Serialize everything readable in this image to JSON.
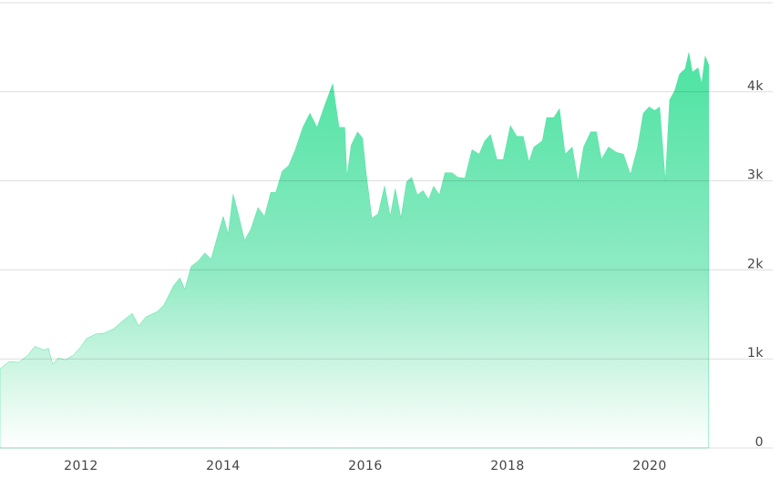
{
  "chart_data": {
    "type": "area",
    "color": "#4be3a1",
    "grid": true,
    "x": [
      2010.86,
      2010.99,
      2011.12,
      2011.25,
      2011.35,
      2011.48,
      2011.54,
      2011.6,
      2011.68,
      2011.78,
      2011.89,
      2011.99,
      2012.08,
      2012.21,
      2012.33,
      2012.46,
      2012.59,
      2012.72,
      2012.81,
      2012.91,
      2013.07,
      2013.17,
      2013.3,
      2013.39,
      2013.46,
      2013.55,
      2013.65,
      2013.74,
      2013.83,
      2013.91,
      2014.0,
      2014.07,
      2014.14,
      2014.22,
      2014.3,
      2014.39,
      2014.49,
      2014.58,
      2014.67,
      2014.74,
      2014.83,
      2014.92,
      2015.01,
      2015.12,
      2015.22,
      2015.32,
      2015.42,
      2015.54,
      2015.63,
      2015.71,
      2015.74,
      2015.8,
      2015.89,
      2015.96,
      2016.01,
      2016.09,
      2016.18,
      2016.27,
      2016.35,
      2016.42,
      2016.5,
      2016.58,
      2016.65,
      2016.73,
      2016.81,
      2016.89,
      2016.96,
      2017.04,
      2017.12,
      2017.22,
      2017.3,
      2017.4,
      2017.5,
      2017.6,
      2017.68,
      2017.76,
      2017.85,
      2017.94,
      2018.04,
      2018.13,
      2018.22,
      2018.3,
      2018.37,
      2018.49,
      2018.55,
      2018.65,
      2018.73,
      2018.81,
      2018.91,
      2018.99,
      2019.07,
      2019.17,
      2019.25,
      2019.32,
      2019.42,
      2019.53,
      2019.63,
      2019.73,
      2019.83,
      2019.91,
      2019.99,
      2020.07,
      2020.14,
      2020.22,
      2020.28,
      2020.35,
      2020.42,
      2020.5,
      2020.55,
      2020.6,
      2020.68,
      2020.73,
      2020.78,
      2020.83
    ],
    "values": [
      890,
      970,
      960,
      1040,
      1140,
      1100,
      1120,
      940,
      1010,
      990,
      1040,
      1130,
      1230,
      1280,
      1290,
      1340,
      1430,
      1510,
      1370,
      1470,
      1530,
      1610,
      1820,
      1910,
      1780,
      2040,
      2100,
      2190,
      2120,
      2350,
      2600,
      2400,
      2850,
      2600,
      2330,
      2460,
      2700,
      2600,
      2870,
      2870,
      3110,
      3170,
      3340,
      3600,
      3760,
      3600,
      3830,
      4090,
      3600,
      3600,
      3040,
      3400,
      3550,
      3480,
      3090,
      2580,
      2630,
      2940,
      2600,
      2910,
      2580,
      2990,
      3040,
      2840,
      2890,
      2790,
      2940,
      2840,
      3090,
      3090,
      3040,
      3030,
      3350,
      3300,
      3450,
      3520,
      3240,
      3240,
      3620,
      3500,
      3500,
      3210,
      3380,
      3450,
      3710,
      3710,
      3810,
      3300,
      3380,
      2990,
      3380,
      3550,
      3550,
      3240,
      3380,
      3320,
      3300,
      3070,
      3380,
      3760,
      3830,
      3790,
      3830,
      2990,
      3910,
      4010,
      4200,
      4260,
      4440,
      4220,
      4270,
      4090,
      4400,
      4300
    ],
    "xlim": [
      2010.86,
      2021.73
    ],
    "xticks": [
      2012,
      2014,
      2016,
      2018,
      2020
    ],
    "ylim": [
      0,
      5000
    ],
    "yticks": [
      0,
      {
        "value": 1000,
        "label": "1k"
      },
      {
        "value": 2000,
        "label": "2k"
      },
      {
        "value": 3000,
        "label": "3k"
      },
      {
        "value": 4000,
        "label": "4k"
      }
    ]
  }
}
